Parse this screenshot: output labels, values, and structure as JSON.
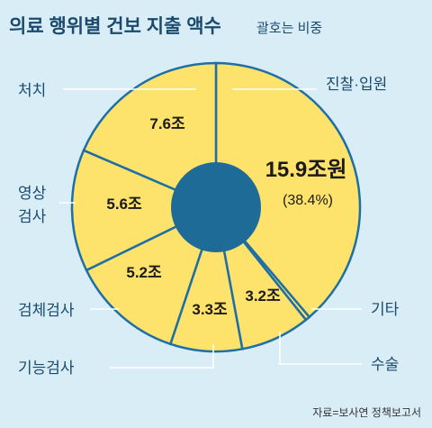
{
  "header": {
    "title": "의료 행위별 건보 지출 액수",
    "subtitle": "괄호는 비중"
  },
  "source": "자료=보사연 정책보고서",
  "colors": {
    "background": "#d9edf6",
    "slice_fill": "#fde26c",
    "slice_stroke": "#1d6fa5",
    "center": "#1f6b98",
    "text_dark": "#1b4a6e"
  },
  "chart_data": {
    "type": "pie",
    "title": "의료 행위별 건보 지출 액수",
    "subtitle": "괄호는 비중",
    "unit": "조",
    "categories": [
      "진찰·입원",
      "기타",
      "수술",
      "기능검사",
      "검체검사",
      "영상검사",
      "처치"
    ],
    "values": [
      15.9,
      0.2,
      3.2,
      3.3,
      5.2,
      5.6,
      7.6
    ],
    "labels": [
      "15.9조원",
      "",
      "3.2조",
      "3.3조",
      "5.2조",
      "5.6조",
      "7.6조"
    ],
    "annotations": [
      "(38.4%)"
    ]
  }
}
